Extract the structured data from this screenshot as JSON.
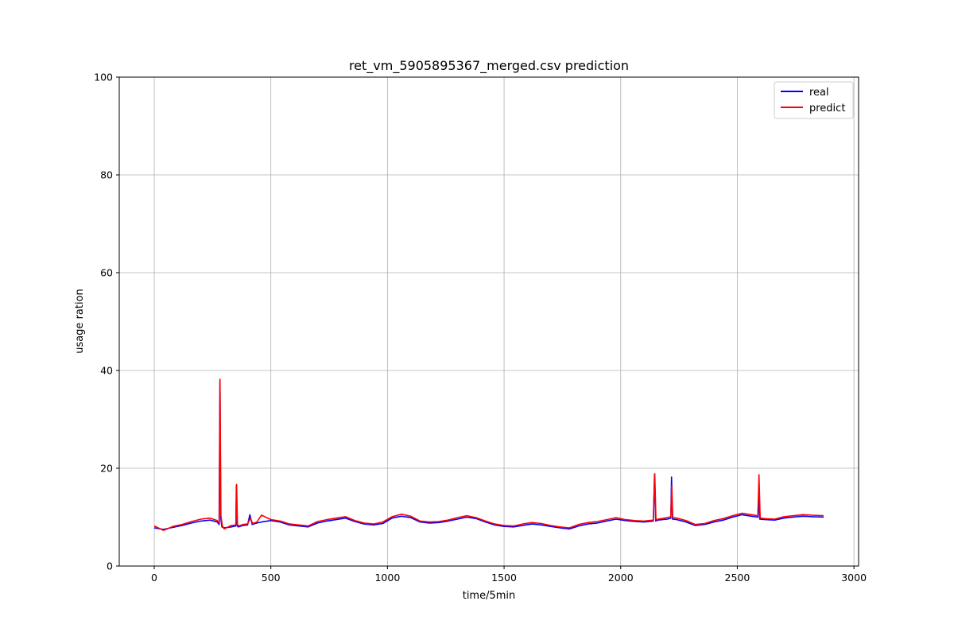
{
  "chart_data": {
    "type": "line",
    "title": "ret_vm_5905895367_merged.csv prediction",
    "xlabel": "time/5min",
    "ylabel": "usage ration",
    "xlim": [
      -150,
      3020
    ],
    "ylim": [
      0,
      100
    ],
    "xticks": [
      0,
      500,
      1000,
      1500,
      2000,
      2500,
      3000
    ],
    "yticks": [
      0,
      20,
      40,
      60,
      80,
      100
    ],
    "grid": true,
    "legend_position": "top-right",
    "series": [
      {
        "name": "real",
        "color": "#0000ff",
        "x": [
          0,
          40,
          80,
          120,
          160,
          200,
          240,
          270,
          278,
          282,
          285,
          290,
          300,
          330,
          350,
          352,
          356,
          360,
          380,
          400,
          410,
          420,
          440,
          460,
          500,
          540,
          580,
          620,
          660,
          700,
          740,
          780,
          820,
          860,
          900,
          940,
          980,
          1020,
          1060,
          1100,
          1140,
          1180,
          1220,
          1260,
          1300,
          1340,
          1380,
          1420,
          1460,
          1500,
          1540,
          1580,
          1620,
          1660,
          1700,
          1740,
          1780,
          1820,
          1860,
          1900,
          1940,
          1980,
          2020,
          2060,
          2100,
          2140,
          2145,
          2150,
          2160,
          2200,
          2215,
          2218,
          2222,
          2240,
          2280,
          2320,
          2360,
          2400,
          2440,
          2480,
          2520,
          2560,
          2588,
          2592,
          2596,
          2620,
          2660,
          2700,
          2740,
          2780,
          2820,
          2870
        ],
        "y": [
          7.8,
          7.5,
          7.9,
          8.3,
          8.8,
          9.2,
          9.4,
          9.0,
          8.5,
          38.0,
          10.0,
          8.0,
          7.8,
          8.0,
          8.2,
          16.5,
          8.3,
          8.0,
          8.3,
          8.4,
          10.5,
          8.5,
          8.8,
          9.0,
          9.3,
          9.0,
          8.4,
          8.2,
          8.0,
          8.8,
          9.2,
          9.5,
          9.8,
          9.1,
          8.6,
          8.4,
          8.7,
          9.8,
          10.2,
          9.9,
          9.0,
          8.8,
          8.9,
          9.2,
          9.6,
          10.0,
          9.7,
          9.0,
          8.4,
          8.1,
          8.0,
          8.3,
          8.6,
          8.4,
          8.1,
          7.8,
          7.6,
          8.2,
          8.6,
          8.8,
          9.2,
          9.6,
          9.3,
          9.1,
          9.0,
          9.2,
          18.7,
          9.2,
          9.4,
          9.6,
          9.8,
          18.2,
          9.6,
          9.5,
          9.0,
          8.3,
          8.5,
          9.0,
          9.4,
          10.0,
          10.5,
          10.2,
          10.0,
          14.5,
          9.6,
          9.5,
          9.4,
          9.8,
          10.0,
          10.2,
          10.1,
          10.0
        ]
      },
      {
        "name": "predict",
        "color": "#ff0000",
        "x": [
          0,
          40,
          80,
          120,
          160,
          200,
          240,
          270,
          279,
          282,
          286,
          292,
          300,
          330,
          350,
          353,
          357,
          362,
          380,
          400,
          412,
          422,
          440,
          460,
          500,
          540,
          580,
          620,
          660,
          700,
          740,
          780,
          820,
          860,
          900,
          940,
          980,
          1020,
          1060,
          1100,
          1140,
          1180,
          1220,
          1260,
          1300,
          1340,
          1380,
          1420,
          1460,
          1500,
          1540,
          1580,
          1620,
          1660,
          1700,
          1740,
          1780,
          1820,
          1860,
          1900,
          1940,
          1980,
          2020,
          2060,
          2100,
          2140,
          2146,
          2151,
          2160,
          2200,
          2215,
          2219,
          2223,
          2240,
          2280,
          2320,
          2360,
          2400,
          2440,
          2480,
          2520,
          2560,
          2588,
          2593,
          2598,
          2620,
          2660,
          2700,
          2740,
          2780,
          2820,
          2870
        ],
        "y": [
          8.2,
          7.3,
          8.1,
          8.5,
          9.1,
          9.6,
          9.8,
          9.3,
          8.7,
          38.2,
          10.3,
          8.2,
          7.6,
          8.3,
          8.4,
          16.7,
          8.5,
          8.2,
          8.5,
          8.6,
          9.8,
          8.7,
          9.0,
          10.4,
          9.5,
          9.2,
          8.6,
          8.4,
          8.2,
          9.1,
          9.5,
          9.8,
          10.1,
          9.3,
          8.8,
          8.6,
          9.0,
          10.1,
          10.6,
          10.2,
          9.2,
          9.0,
          9.1,
          9.4,
          9.9,
          10.3,
          9.9,
          9.2,
          8.6,
          8.3,
          8.2,
          8.6,
          8.9,
          8.7,
          8.3,
          8.0,
          7.8,
          8.5,
          8.9,
          9.1,
          9.5,
          9.9,
          9.5,
          9.3,
          9.2,
          9.4,
          18.9,
          9.4,
          9.6,
          9.9,
          10.1,
          16.5,
          9.9,
          9.8,
          9.3,
          8.5,
          8.7,
          9.3,
          9.7,
          10.3,
          10.8,
          10.5,
          10.3,
          18.7,
          9.8,
          9.7,
          9.6,
          10.1,
          10.3,
          10.5,
          10.4,
          10.3
        ]
      }
    ]
  }
}
